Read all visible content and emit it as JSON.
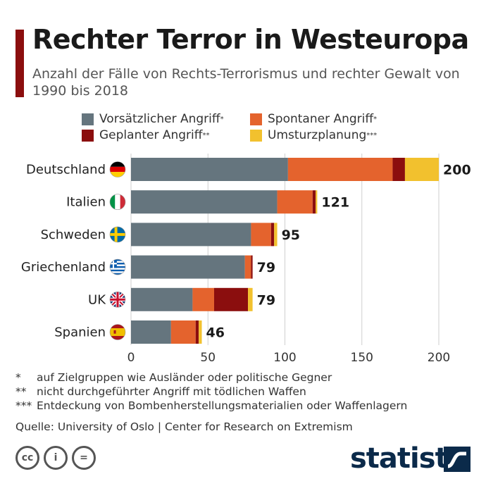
{
  "header": {
    "title": "Rechter Terror in Westeuropa",
    "subtitle": "Anzahl der Fälle von Rechts-Terrorismus und rechter Gewalt von 1990 bis 2018"
  },
  "legend": [
    {
      "label": "Vorsätzlicher Angriff",
      "sup": "*",
      "color": "#65757e"
    },
    {
      "label": "Spontaner Angriff",
      "sup": "*",
      "color": "#e4632d"
    },
    {
      "label": "Geplanter Angriff",
      "sup": "**",
      "color": "#8b0e0e"
    },
    {
      "label": "Umsturzplanung",
      "sup": "***",
      "color": "#f2c12e"
    }
  ],
  "chart_data": {
    "type": "bar",
    "orientation": "horizontal",
    "stacked": true,
    "title": "Rechter Terror in Westeuropa",
    "categories": [
      "Deutschland",
      "Italien",
      "Schweden",
      "Griechenland",
      "UK",
      "Spanien"
    ],
    "series": [
      {
        "name": "Vorsätzlicher Angriff",
        "values": [
          102,
          95,
          78,
          74,
          40,
          26
        ]
      },
      {
        "name": "Spontaner Angriff",
        "values": [
          68,
          23,
          13,
          4,
          14,
          16
        ]
      },
      {
        "name": "Geplanter Angriff",
        "values": [
          8,
          2,
          2,
          1,
          22,
          2
        ]
      },
      {
        "name": "Umsturzplanung",
        "values": [
          22,
          1,
          2,
          0,
          3,
          2
        ]
      }
    ],
    "totals": [
      200,
      121,
      95,
      79,
      79,
      46
    ],
    "xlim": [
      0,
      200
    ],
    "xticks": [
      "0",
      "50",
      "100",
      "150",
      "200"
    ],
    "xlabel": "",
    "ylabel": "",
    "grid": true
  },
  "footnotes": [
    {
      "mark": "*",
      "text": "auf Zielgruppen wie Ausländer oder politische Gegner"
    },
    {
      "mark": "**",
      "text": "nicht durchgeführter Angriff mit tödlichen Waffen"
    },
    {
      "mark": "***",
      "text": "Entdeckung von Bombenherstellungsmaterialien oder Waffenlagern"
    }
  ],
  "source": "Quelle: University of Oslo | Center for Research on Extremism",
  "license_icons": [
    "cc",
    "i",
    "="
  ],
  "brand": "statista"
}
